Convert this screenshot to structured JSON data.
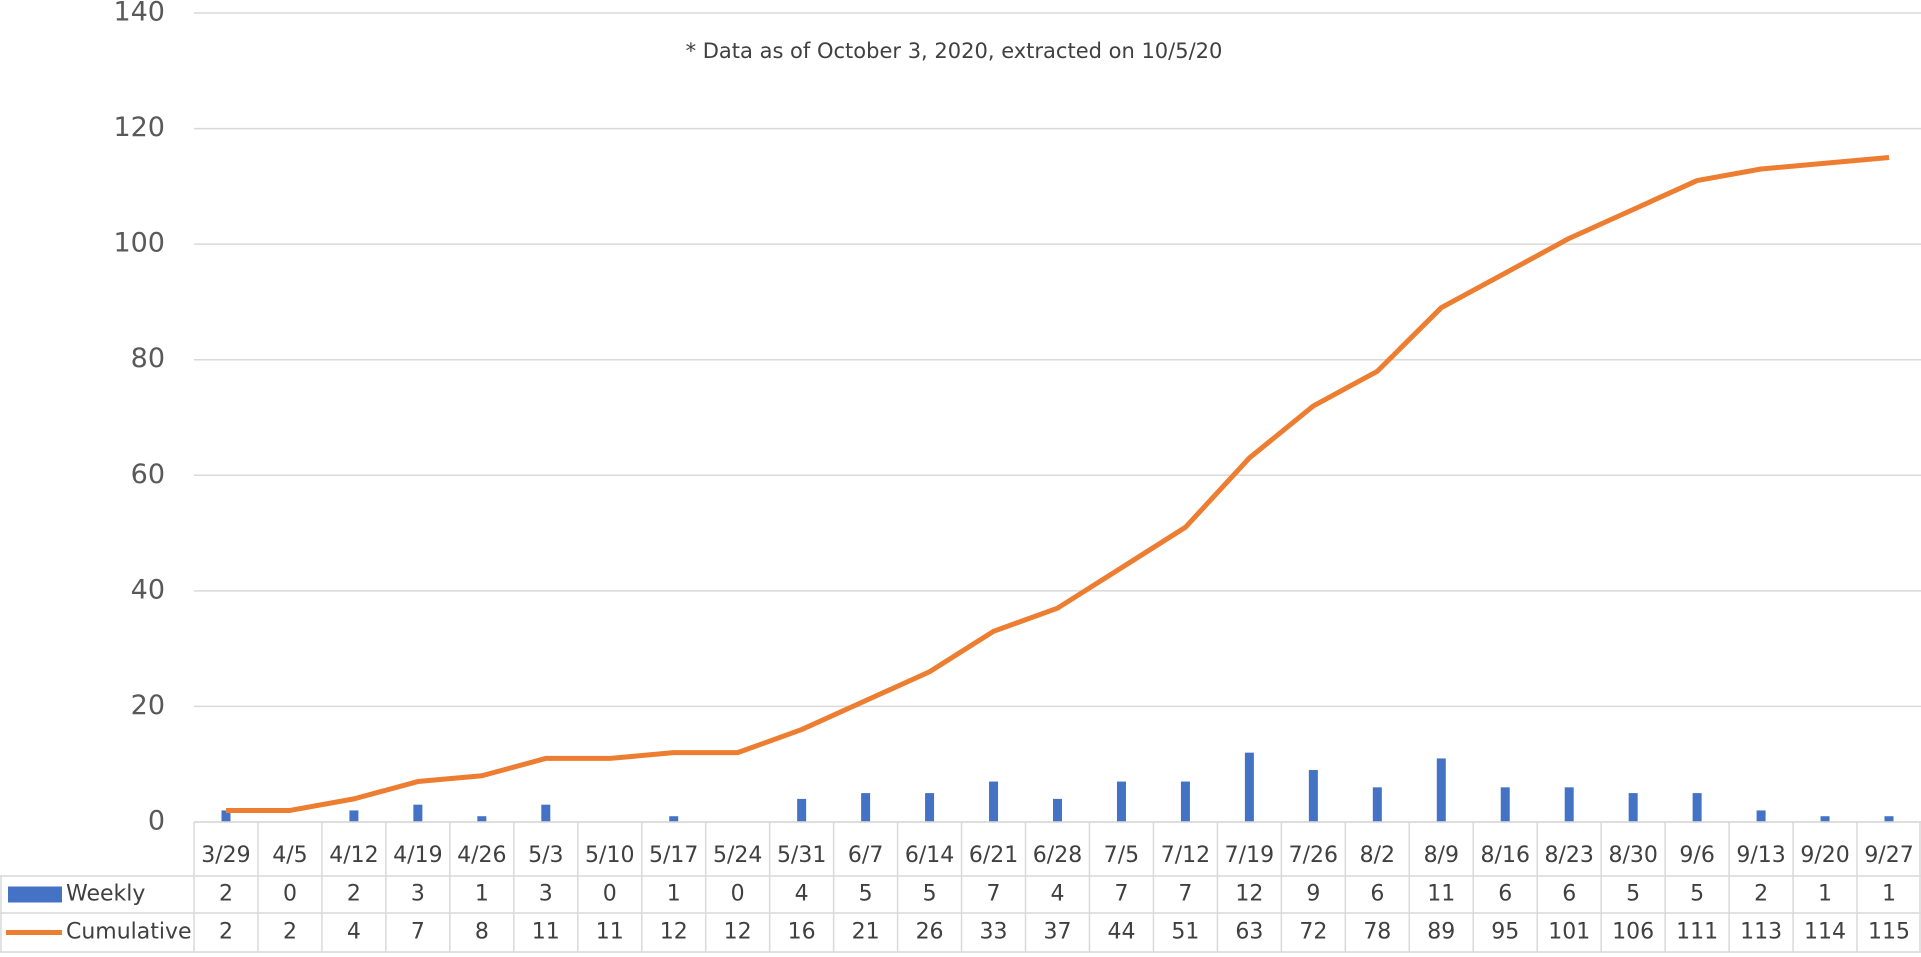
{
  "chart_data": {
    "type": "bar_line",
    "subtitle": "* Data as of October 3, 2020, extracted on 10/5/20",
    "categories": [
      "3/29",
      "4/5",
      "4/12",
      "4/19",
      "4/26",
      "5/3",
      "5/10",
      "5/17",
      "5/24",
      "5/31",
      "6/7",
      "6/14",
      "6/21",
      "6/28",
      "7/5",
      "7/12",
      "7/19",
      "7/26",
      "8/2",
      "8/9",
      "8/16",
      "8/23",
      "8/30",
      "9/6",
      "9/13",
      "9/20",
      "9/27"
    ],
    "series": [
      {
        "name": "Weekly",
        "type": "bar",
        "color": "#4472c4",
        "values": [
          2,
          0,
          2,
          3,
          1,
          3,
          0,
          1,
          0,
          4,
          5,
          5,
          7,
          4,
          7,
          7,
          12,
          9,
          6,
          11,
          6,
          6,
          5,
          5,
          2,
          1,
          1
        ]
      },
      {
        "name": "Cumulative",
        "type": "line",
        "color": "#ed7d31",
        "values": [
          2,
          2,
          4,
          7,
          8,
          11,
          11,
          12,
          12,
          16,
          21,
          26,
          33,
          37,
          44,
          51,
          63,
          72,
          78,
          89,
          95,
          101,
          106,
          111,
          113,
          114,
          115
        ]
      }
    ],
    "ylim": [
      0,
      140
    ],
    "yticks": [
      0,
      20,
      40,
      60,
      80,
      100,
      120,
      140
    ],
    "grid": true,
    "data_table": true
  }
}
